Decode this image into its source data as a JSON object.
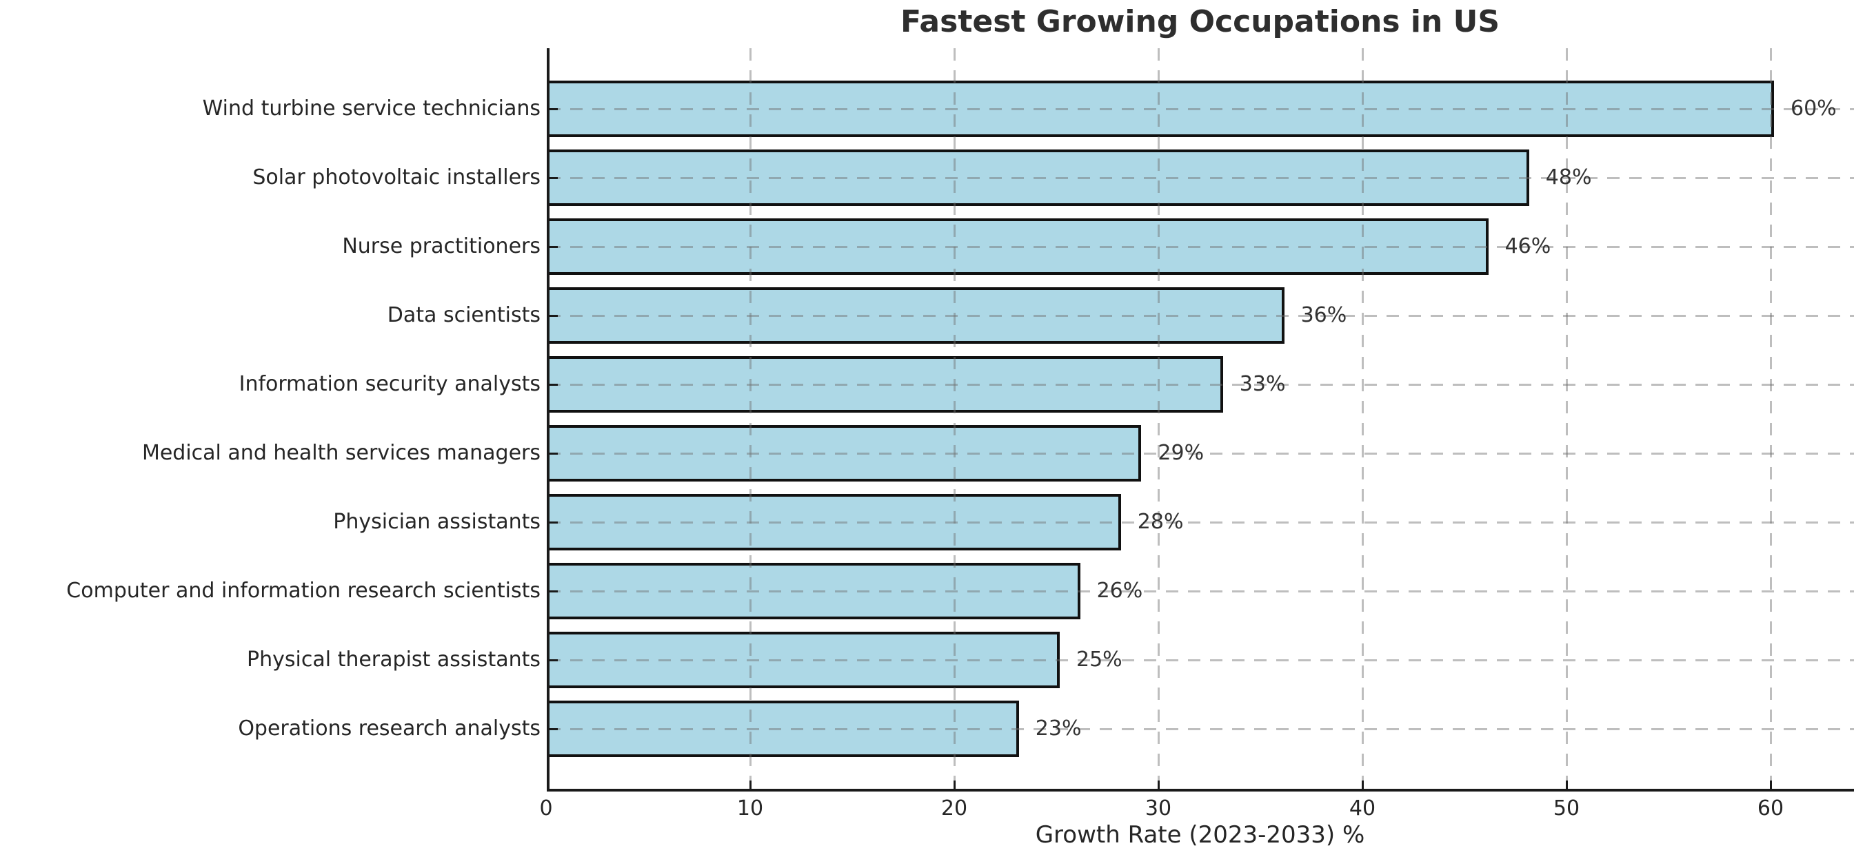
{
  "chart_data": {
    "type": "bar",
    "orientation": "horizontal",
    "title": "Fastest Growing Occupations in US",
    "xlabel": "Growth Rate (2023-2033) %",
    "categories": [
      "Wind turbine service technicians",
      "Solar photovoltaic installers",
      "Nurse practitioners",
      "Data scientists",
      "Information security analysts",
      "Medical and health services managers",
      "Physician assistants",
      "Computer and information research scientists",
      "Physical therapist assistants",
      "Operations research analysts"
    ],
    "values": [
      60,
      48,
      46,
      36,
      33,
      29,
      28,
      26,
      25,
      23
    ],
    "value_labels": [
      "60%",
      "48%",
      "46%",
      "36%",
      "33%",
      "29%",
      "28%",
      "26%",
      "25%",
      "23%"
    ],
    "xticks": [
      0,
      10,
      20,
      30,
      40,
      50,
      60
    ],
    "xlim": [
      0,
      64
    ],
    "grid": "dashed",
    "legend": "none",
    "colors": {
      "bar_fill": "#ADD8E6",
      "bar_edge": "#111111",
      "grid": "#c6c6c6",
      "spine": "#1a1a1a",
      "text": "#262626"
    }
  }
}
